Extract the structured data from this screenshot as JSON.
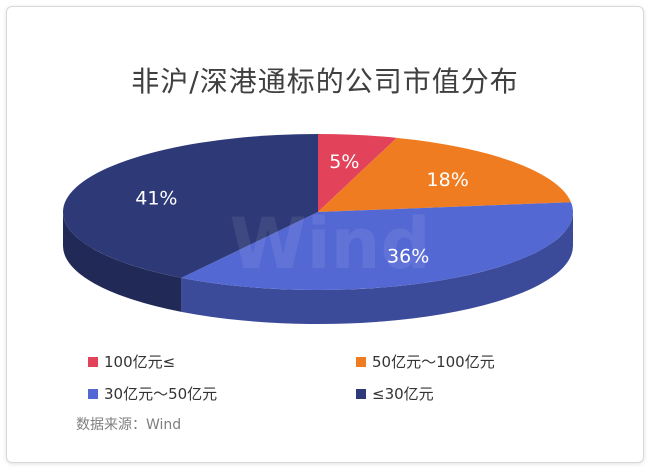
{
  "chart_data": {
    "type": "pie",
    "title": "非沪/深港通标的公司市值分布",
    "slices": [
      {
        "label": "100亿元≤",
        "value": 5,
        "value_label": "5%",
        "color": "#e2435a"
      },
      {
        "label": "50亿元～100亿元",
        "value": 18,
        "value_label": "18%",
        "color": "#f07c22"
      },
      {
        "label": "30亿元～50亿元",
        "value": 36,
        "value_label": "36%",
        "color": "#5468d4"
      },
      {
        "label": "≤30亿元",
        "value": 41,
        "value_label": "41%",
        "color": "#2e3a78"
      }
    ],
    "legend_position": "bottom",
    "watermark": "Wind"
  },
  "source": "数据来源：Wind"
}
